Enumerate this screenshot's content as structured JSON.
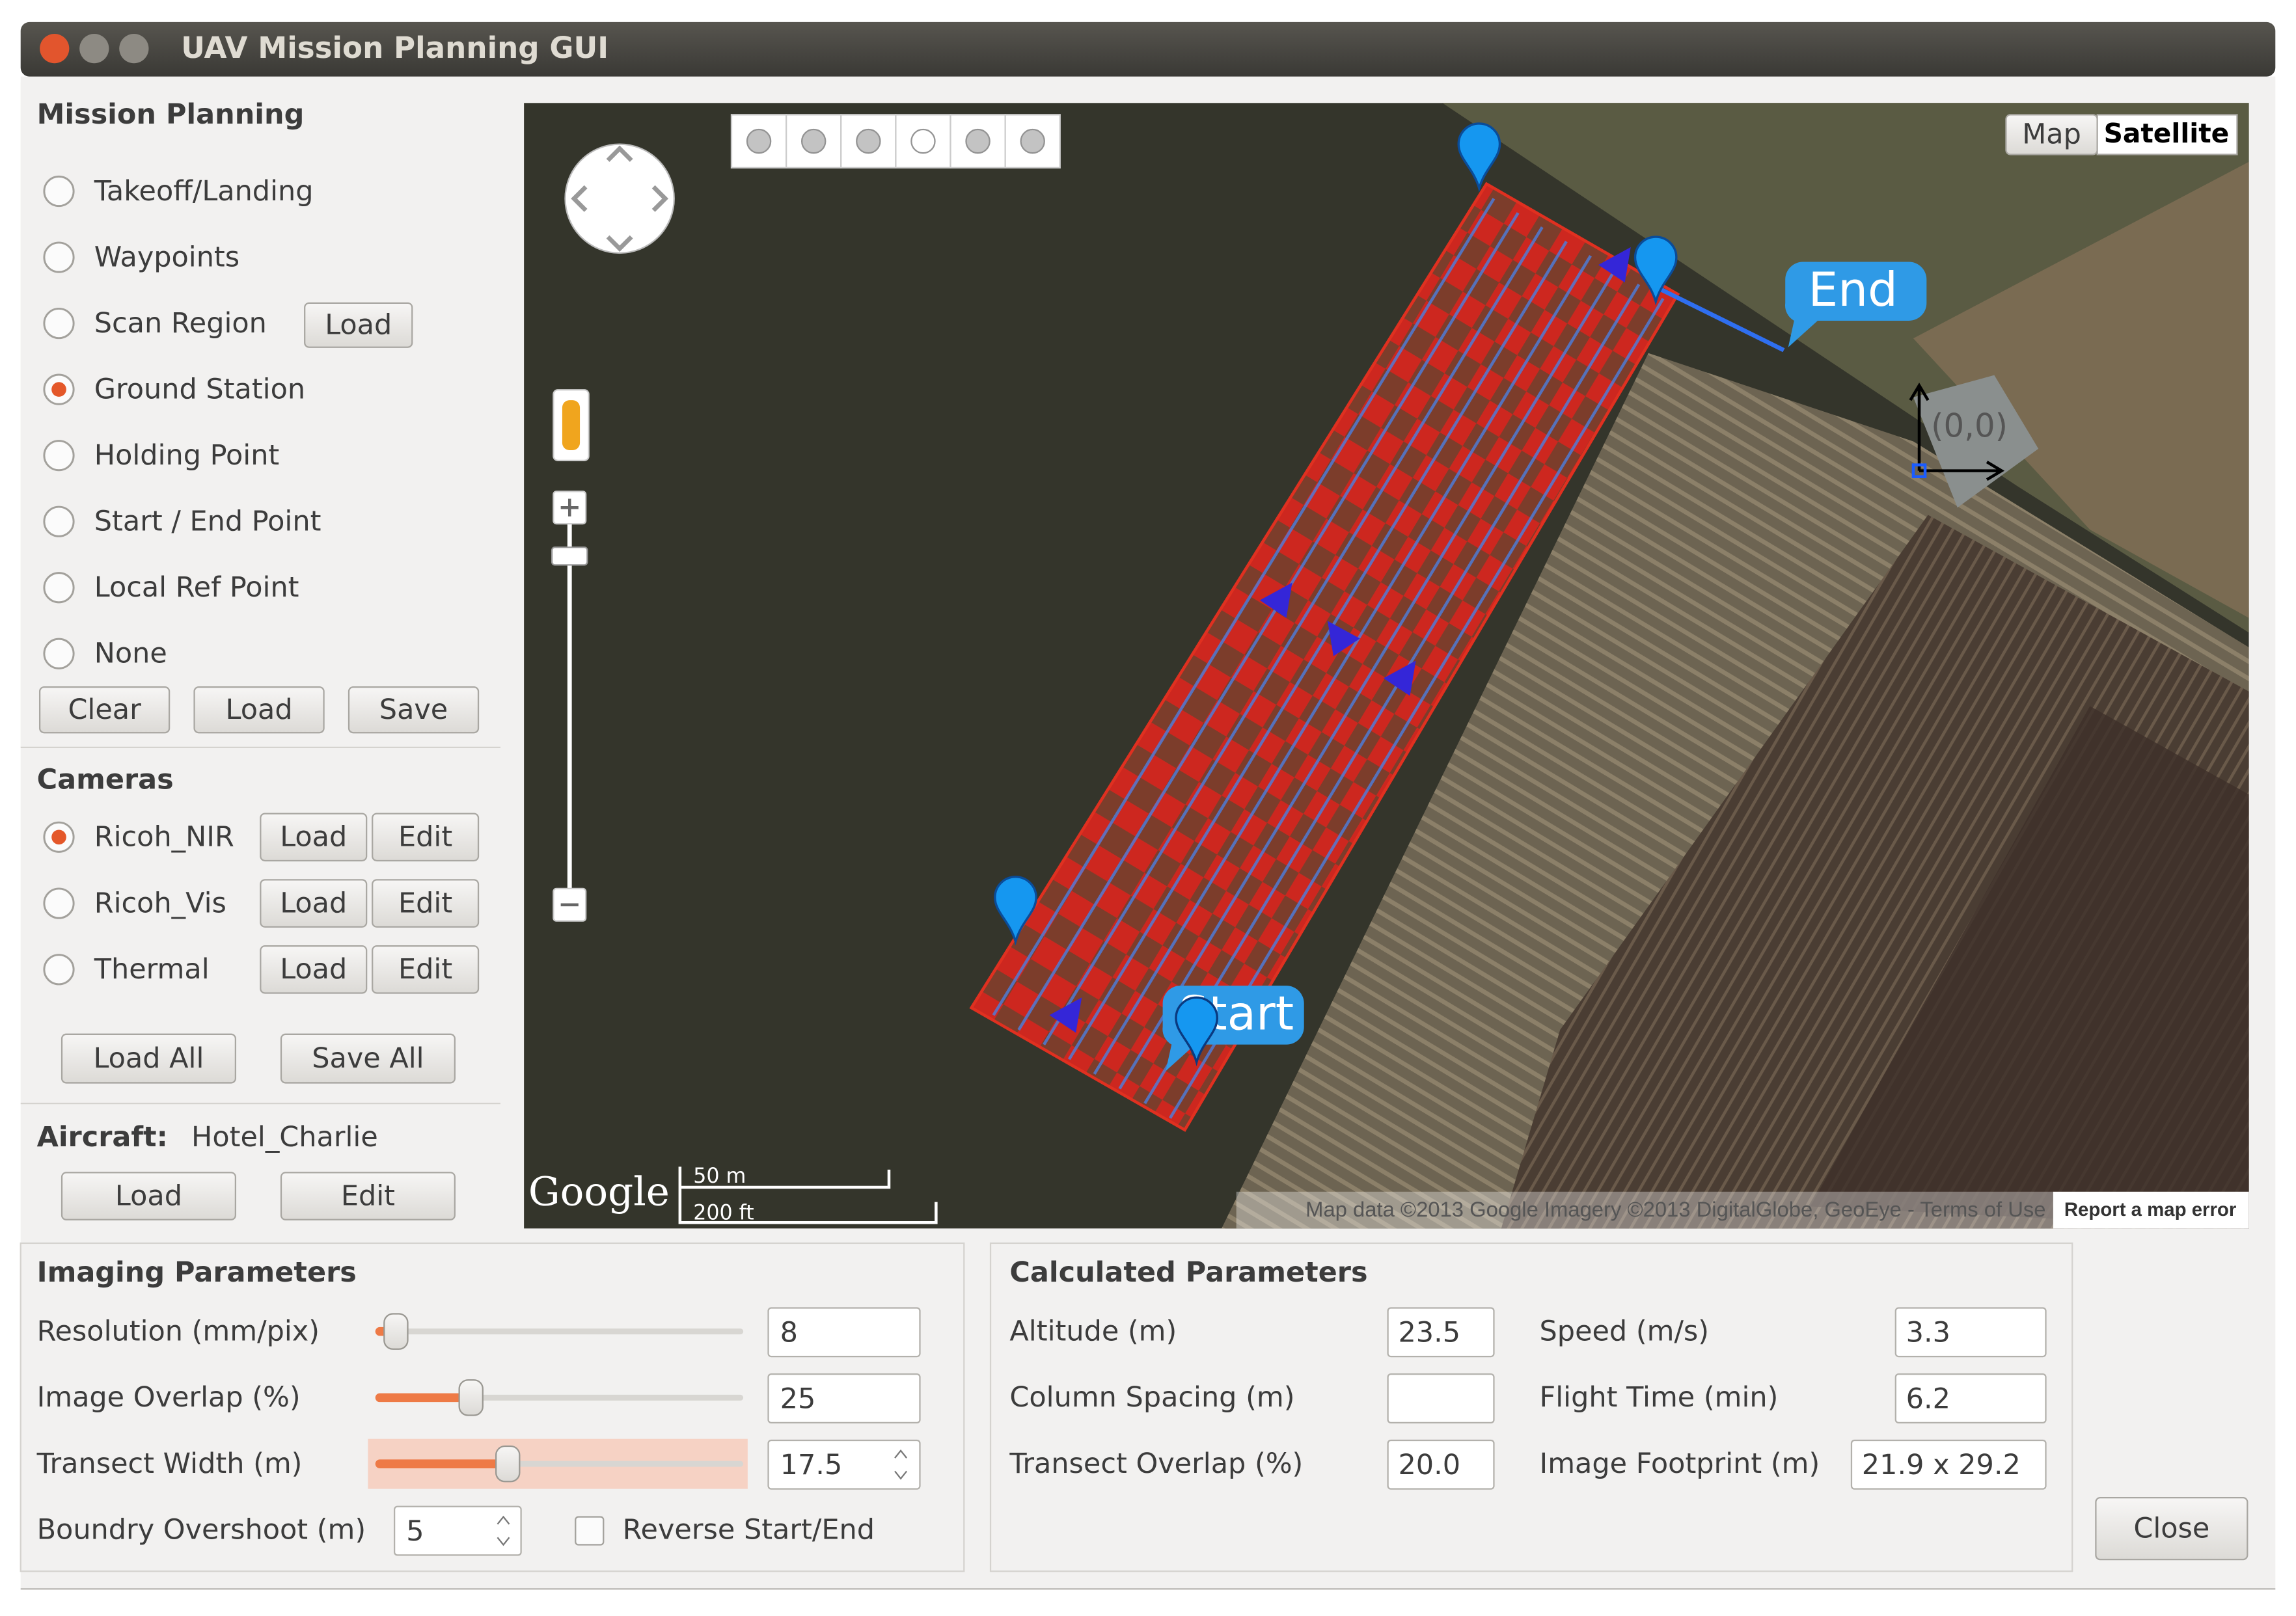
{
  "window": {
    "title": "UAV Mission Planning GUI"
  },
  "mission_planning": {
    "title": "Mission Planning",
    "options": [
      "Takeoff/Landing",
      "Waypoints",
      "Scan Region",
      "Ground Station",
      "Holding Point",
      "Start / End Point",
      "Local Ref Point",
      "None"
    ],
    "selected": 3,
    "scan_region_button": "Load",
    "buttons": [
      "Clear",
      "Load",
      "Save"
    ]
  },
  "cameras": {
    "title": "Cameras",
    "items": [
      {
        "name": "Ricoh_NIR",
        "buttons": [
          "Load",
          "Edit"
        ]
      },
      {
        "name": "Ricoh_Vis",
        "buttons": [
          "Load",
          "Edit"
        ]
      },
      {
        "name": "Thermal",
        "buttons": [
          "Load",
          "Edit"
        ]
      }
    ],
    "selected": 0,
    "buttons": [
      "Load All",
      "Save All"
    ]
  },
  "aircraft": {
    "label": "Aircraft:",
    "name": "Hotel_Charlie",
    "buttons": [
      "Load",
      "Edit"
    ]
  },
  "map": {
    "type_buttons": [
      "Map",
      "Satellite"
    ],
    "end_marker": "End",
    "start_marker": "Start",
    "origin_label": "(0,0)",
    "logo": "Google",
    "scale": [
      "50 m",
      "200 ft"
    ],
    "attribution": "Map data ©2013 Google Imagery ©2013 DigitalGlobe, GeoEye - Terms of Use",
    "report": "Report a map error"
  },
  "imaging": {
    "title": "Imaging Parameters",
    "fields": [
      {
        "label": "Resolution (mm/pix)",
        "value": "8"
      },
      {
        "label": "Image Overlap (%)",
        "value": "25"
      },
      {
        "label": "Transect Width (m)",
        "value": "17.5"
      },
      {
        "label": "Boundry Overshoot (m)",
        "value": "5"
      }
    ],
    "checkbox": "Reverse Start/End"
  },
  "calculated": {
    "title": "Calculated Parameters",
    "fields": [
      {
        "label": "Altitude (m)",
        "value": "23.5"
      },
      {
        "label": "Column Spacing (m)"
      },
      {
        "label": "Transect Overlap (%)",
        "value": "20.0"
      },
      {
        "label": "Speed (m/s)",
        "value": "3.3"
      },
      {
        "label": "Flight Time (min)",
        "value": "6.2"
      },
      {
        "label": "Image Footprint (m)",
        "value": "21.9 x 29.2"
      }
    ]
  },
  "close": "Close"
}
